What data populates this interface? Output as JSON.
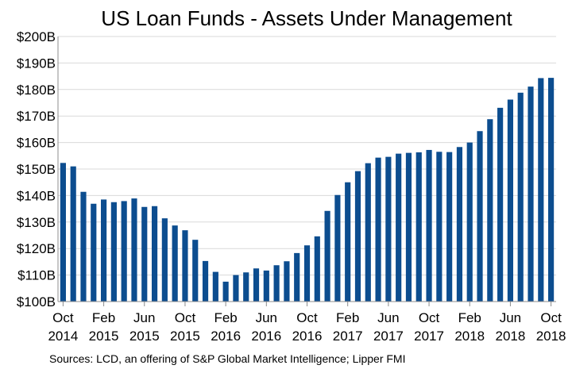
{
  "chart_data": {
    "type": "bar",
    "title": "US Loan Funds - Assets Under Management",
    "ylabel": "",
    "xlabel": "",
    "ylim": [
      100,
      200
    ],
    "y_ticks": [
      {
        "value": 100,
        "label": "$100B"
      },
      {
        "value": 110,
        "label": "$110B"
      },
      {
        "value": 120,
        "label": "$120B"
      },
      {
        "value": 130,
        "label": "$130B"
      },
      {
        "value": 140,
        "label": "$140B"
      },
      {
        "value": 150,
        "label": "$150B"
      },
      {
        "value": 160,
        "label": "$160B"
      },
      {
        "value": 170,
        "label": "$170B"
      },
      {
        "value": 180,
        "label": "$180B"
      },
      {
        "value": 190,
        "label": "$190B"
      },
      {
        "value": 200,
        "label": "$200B"
      }
    ],
    "x_ticks": [
      {
        "index": 0,
        "line1": "Oct",
        "line2": "2014"
      },
      {
        "index": 4,
        "line1": "Feb",
        "line2": "2015"
      },
      {
        "index": 8,
        "line1": "Jun",
        "line2": "2015"
      },
      {
        "index": 12,
        "line1": "Oct",
        "line2": "2015"
      },
      {
        "index": 16,
        "line1": "Feb",
        "line2": "2016"
      },
      {
        "index": 20,
        "line1": "Jun",
        "line2": "2016"
      },
      {
        "index": 24,
        "line1": "Oct",
        "line2": "2016"
      },
      {
        "index": 28,
        "line1": "Feb",
        "line2": "2017"
      },
      {
        "index": 32,
        "line1": "Jun",
        "line2": "2017"
      },
      {
        "index": 36,
        "line1": "Oct",
        "line2": "2017"
      },
      {
        "index": 40,
        "line1": "Feb",
        "line2": "2018"
      },
      {
        "index": 44,
        "line1": "Jun",
        "line2": "2018"
      },
      {
        "index": 48,
        "line1": "Oct",
        "line2": "2018"
      }
    ],
    "categories": [
      "Oct 2014",
      "Nov 2014",
      "Dec 2014",
      "Jan 2015",
      "Feb 2015",
      "Mar 2015",
      "Apr 2015",
      "May 2015",
      "Jun 2015",
      "Jul 2015",
      "Aug 2015",
      "Sep 2015",
      "Oct 2015",
      "Nov 2015",
      "Dec 2015",
      "Jan 2016",
      "Feb 2016",
      "Mar 2016",
      "Apr 2016",
      "May 2016",
      "Jun 2016",
      "Jul 2016",
      "Aug 2016",
      "Sep 2016",
      "Oct 2016",
      "Nov 2016",
      "Dec 2016",
      "Jan 2017",
      "Feb 2017",
      "Mar 2017",
      "Apr 2017",
      "May 2017",
      "Jun 2017",
      "Jul 2017",
      "Aug 2017",
      "Sep 2017",
      "Oct 2017",
      "Nov 2017",
      "Dec 2017",
      "Jan 2018",
      "Feb 2018",
      "Mar 2018",
      "Apr 2018",
      "May 2018",
      "Jun 2018",
      "Jul 2018",
      "Aug 2018",
      "Sep 2018",
      "Oct 2018"
    ],
    "values": [
      152.3,
      151.0,
      141.4,
      136.9,
      138.5,
      137.5,
      137.9,
      138.9,
      135.7,
      136.0,
      131.4,
      128.7,
      126.9,
      123.3,
      115.3,
      111.2,
      107.5,
      110.0,
      111.0,
      112.5,
      111.7,
      113.7,
      115.2,
      118.3,
      121.2,
      124.6,
      134.2,
      140.2,
      145.0,
      149.2,
      152.2,
      154.3,
      154.6,
      155.8,
      156.1,
      156.3,
      157.2,
      156.5,
      156.4,
      158.3,
      160.0,
      164.3,
      168.8,
      173.1,
      176.2,
      178.8,
      181.1,
      184.3,
      184.4
    ],
    "bar_color": "#0c4d8f",
    "grid": true
  },
  "source": "Sources: LCD, an offering of S&P Global Market Intelligence; Lipper FMI"
}
